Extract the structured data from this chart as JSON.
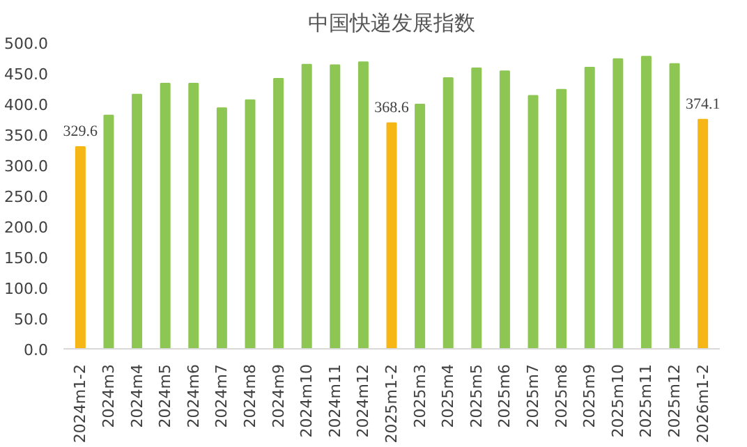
{
  "chart_data": {
    "type": "bar",
    "title": "中国快递发展指数",
    "categories": [
      "2024m1-2",
      "2024m3",
      "2024m4",
      "2024m5",
      "2024m6",
      "2024m7",
      "2024m8",
      "2024m9",
      "2024m10",
      "2024m11",
      "2024m12",
      "2025m1-2",
      "2025m3",
      "2025m4",
      "2025m5",
      "2025m6",
      "2025m7",
      "2025m8",
      "2025m9",
      "2025m10",
      "2025m11",
      "2025m12",
      "2026m1-2"
    ],
    "values": [
      329.6,
      381,
      415,
      433,
      433,
      393,
      406,
      441,
      464,
      463,
      468,
      368.6,
      399,
      442,
      458,
      453,
      413,
      423,
      459,
      473,
      477,
      465,
      374.1
    ],
    "colors": [
      "#f5b616",
      "#8dc653",
      "#8dc653",
      "#8dc653",
      "#8dc653",
      "#8dc653",
      "#8dc653",
      "#8dc653",
      "#8dc653",
      "#8dc653",
      "#8dc653",
      "#f5b616",
      "#8dc653",
      "#8dc653",
      "#8dc653",
      "#8dc653",
      "#8dc653",
      "#8dc653",
      "#8dc653",
      "#8dc653",
      "#8dc653",
      "#8dc653",
      "#f5b616"
    ],
    "value_labels": [
      "329.6",
      null,
      null,
      null,
      null,
      null,
      null,
      null,
      null,
      null,
      null,
      "368.6",
      null,
      null,
      null,
      null,
      null,
      null,
      null,
      null,
      null,
      null,
      "374.1"
    ],
    "ylim": [
      0,
      500
    ],
    "yticks": [
      {
        "value": 0,
        "label": "0.0"
      },
      {
        "value": 50,
        "label": "50.0"
      },
      {
        "value": 100,
        "label": "100.0"
      },
      {
        "value": 150,
        "label": "150.0"
      },
      {
        "value": 200,
        "label": "200.0"
      },
      {
        "value": 250,
        "label": "250.0"
      },
      {
        "value": 300,
        "label": "300.0"
      },
      {
        "value": 350,
        "label": "350.0"
      },
      {
        "value": 400,
        "label": "400.0"
      },
      {
        "value": 450,
        "label": "450.0"
      },
      {
        "value": 500,
        "label": "500.0"
      }
    ],
    "grid": false
  }
}
